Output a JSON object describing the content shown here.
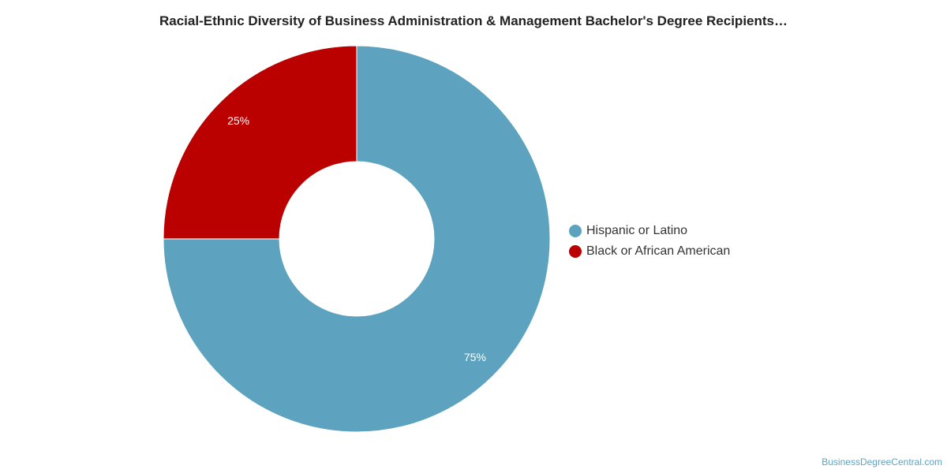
{
  "chart_data": {
    "type": "pie",
    "variant": "donut",
    "title": "Racial-Ethnic Diversity of Business Administration & Management Bachelor's Degree Recipients…",
    "slices": [
      {
        "label": "Hispanic or Latino",
        "value": 75,
        "display": "75%",
        "color": "#5da2be"
      },
      {
        "label": "Black or African American",
        "value": 25,
        "display": "25%",
        "color": "#bb0000"
      }
    ],
    "legend": {
      "position": "right"
    }
  },
  "footer": {
    "source": "BusinessDegreeCentral.com"
  }
}
